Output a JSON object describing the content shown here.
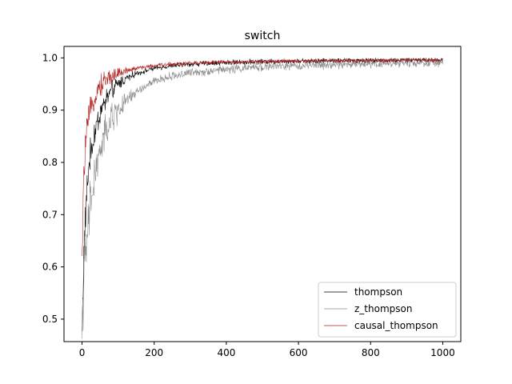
{
  "chart_data": {
    "type": "line",
    "title": "switch",
    "xlabel": "",
    "ylabel": "",
    "xlim": [
      -50,
      1050
    ],
    "ylim": [
      0.457,
      1.022
    ],
    "xticks": [
      0,
      200,
      400,
      600,
      800,
      1000
    ],
    "yticks": [
      0.5,
      0.6,
      0.7,
      0.8,
      0.9,
      1.0
    ],
    "xtick_labels": [
      "0",
      "200",
      "400",
      "600",
      "800",
      "1000"
    ],
    "ytick_labels": [
      "0.5",
      "0.6",
      "0.7",
      "0.8",
      "0.9",
      "1.0"
    ],
    "grid": false,
    "legend_position": "lower-right",
    "series": [
      {
        "name": "thompson",
        "color": "#000000",
        "noise": 0.006,
        "x": [
          0,
          5,
          10,
          15,
          20,
          30,
          40,
          50,
          60,
          70,
          80,
          100,
          120,
          150,
          200,
          250,
          300,
          400,
          500,
          600,
          700,
          800,
          900,
          1000
        ],
        "y": [
          0.48,
          0.62,
          0.7,
          0.76,
          0.8,
          0.84,
          0.87,
          0.895,
          0.91,
          0.925,
          0.935,
          0.95,
          0.96,
          0.97,
          0.98,
          0.985,
          0.988,
          0.991,
          0.993,
          0.994,
          0.995,
          0.995,
          0.996,
          0.996
        ]
      },
      {
        "name": "z_thompson",
        "color": "#8c8c8c",
        "noise": 0.01,
        "x": [
          0,
          5,
          10,
          15,
          20,
          30,
          40,
          50,
          60,
          70,
          80,
          100,
          120,
          150,
          200,
          250,
          300,
          400,
          500,
          600,
          700,
          800,
          900,
          1000
        ],
        "y": [
          0.48,
          0.58,
          0.62,
          0.66,
          0.7,
          0.75,
          0.79,
          0.82,
          0.845,
          0.865,
          0.88,
          0.9,
          0.915,
          0.935,
          0.955,
          0.965,
          0.972,
          0.978,
          0.983,
          0.985,
          0.987,
          0.989,
          0.99,
          0.991
        ]
      },
      {
        "name": "causal_thompson",
        "color": "#b22222",
        "noise": 0.005,
        "x": [
          0,
          5,
          10,
          15,
          20,
          30,
          40,
          50,
          60,
          70,
          80,
          100,
          120,
          150,
          200,
          250,
          300,
          400,
          500,
          600,
          700,
          800,
          900,
          1000
        ],
        "y": [
          0.6,
          0.78,
          0.84,
          0.87,
          0.89,
          0.915,
          0.935,
          0.945,
          0.955,
          0.96,
          0.965,
          0.97,
          0.975,
          0.98,
          0.985,
          0.988,
          0.99,
          0.992,
          0.993,
          0.994,
          0.995,
          0.995,
          0.996,
          0.996
        ]
      }
    ]
  }
}
